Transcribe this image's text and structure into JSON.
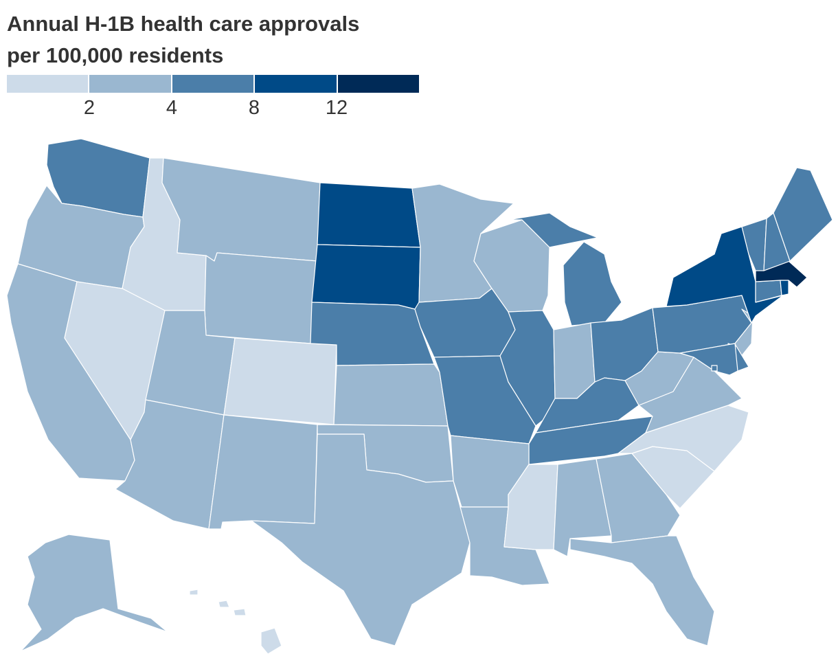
{
  "chart": {
    "title_line1": "Annual H-1B health care approvals",
    "title_line2": "per 100,000 residents"
  },
  "legend": {
    "bins": [
      {
        "id": "b0",
        "color": "#cddbe9"
      },
      {
        "id": "b1",
        "color": "#9ab7d0"
      },
      {
        "id": "b2",
        "color": "#4b7ea9"
      },
      {
        "id": "b3",
        "color": "#004a87"
      },
      {
        "id": "b4",
        "color": "#002a57"
      }
    ],
    "thresholds": [
      "2",
      "4",
      "8",
      "12"
    ]
  },
  "chart_data": {
    "type": "choropleth",
    "title": "Annual H-1B health care approvals per 100,000 residents",
    "bin_edges": [
      2,
      4,
      8,
      12
    ],
    "states": {
      "WA": "b2",
      "OR": "b1",
      "CA": "b1",
      "ID": "b0",
      "NV": "b0",
      "MT": "b1",
      "WY": "b1",
      "UT": "b1",
      "AZ": "b1",
      "CO": "b0",
      "NM": "b1",
      "ND": "b3",
      "SD": "b3",
      "NE": "b2",
      "KS": "b1",
      "OK": "b1",
      "TX": "b1",
      "MN": "b1",
      "IA": "b2",
      "MO": "b2",
      "AR": "b1",
      "LA": "b1",
      "WI": "b1",
      "IL": "b2",
      "MI": "b2",
      "IN": "b1",
      "OH": "b2",
      "KY": "b2",
      "TN": "b2",
      "MS": "b0",
      "AL": "b1",
      "GA": "b1",
      "FL": "b1",
      "SC": "b0",
      "NC": "b0",
      "VA": "b1",
      "WV": "b1",
      "PA": "b2",
      "NY": "b3",
      "VT": "b2",
      "NH": "b2",
      "ME": "b2",
      "MA": "b4",
      "RI": "b3",
      "CT": "b2",
      "NJ": "b1",
      "DE": "b2",
      "MD": "b2",
      "DC": "b2",
      "AK": "b1",
      "HI": "b0"
    }
  }
}
